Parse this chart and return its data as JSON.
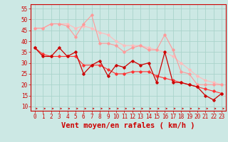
{
  "background_color": "#cce8e4",
  "grid_color": "#aad4cc",
  "xlabel": "Vent moyen/en rafales ( km/h )",
  "xlim": [
    -0.5,
    23.5
  ],
  "ylim": [
    8,
    57
  ],
  "yticks": [
    10,
    15,
    20,
    25,
    30,
    35,
    40,
    45,
    50,
    55
  ],
  "xticks": [
    0,
    1,
    2,
    3,
    4,
    5,
    6,
    7,
    8,
    9,
    10,
    11,
    12,
    13,
    14,
    15,
    16,
    17,
    18,
    19,
    20,
    21,
    22,
    23
  ],
  "line_light1_color": "#ff9999",
  "line_light2_color": "#ffbbbb",
  "line_dark1_color": "#cc0000",
  "line_dark2_color": "#ff3333",
  "line_light1_y": [
    46,
    46,
    48,
    48,
    47,
    42,
    48,
    52,
    39,
    39,
    38,
    35,
    37,
    38,
    36,
    36,
    43,
    36,
    26,
    25,
    20,
    20,
    20,
    20
  ],
  "line_light2_y": [
    46,
    46,
    48,
    48,
    48,
    46,
    47,
    46,
    44,
    43,
    40,
    38,
    38,
    38,
    37,
    36,
    35,
    33,
    30,
    27,
    24,
    22,
    21,
    20
  ],
  "line_dark1_y": [
    37,
    33,
    33,
    37,
    33,
    35,
    25,
    29,
    31,
    24,
    29,
    28,
    31,
    29,
    30,
    21,
    35,
    21,
    21,
    20,
    19,
    15,
    13,
    16
  ],
  "line_dark2_y": [
    37,
    34,
    33,
    33,
    33,
    33,
    29,
    29,
    29,
    27,
    25,
    25,
    26,
    26,
    26,
    24,
    23,
    22,
    21,
    20,
    19,
    18,
    17,
    16
  ],
  "red_color": "#cc0000",
  "tick_fontsize": 5.5,
  "xlabel_fontsize": 7.5
}
